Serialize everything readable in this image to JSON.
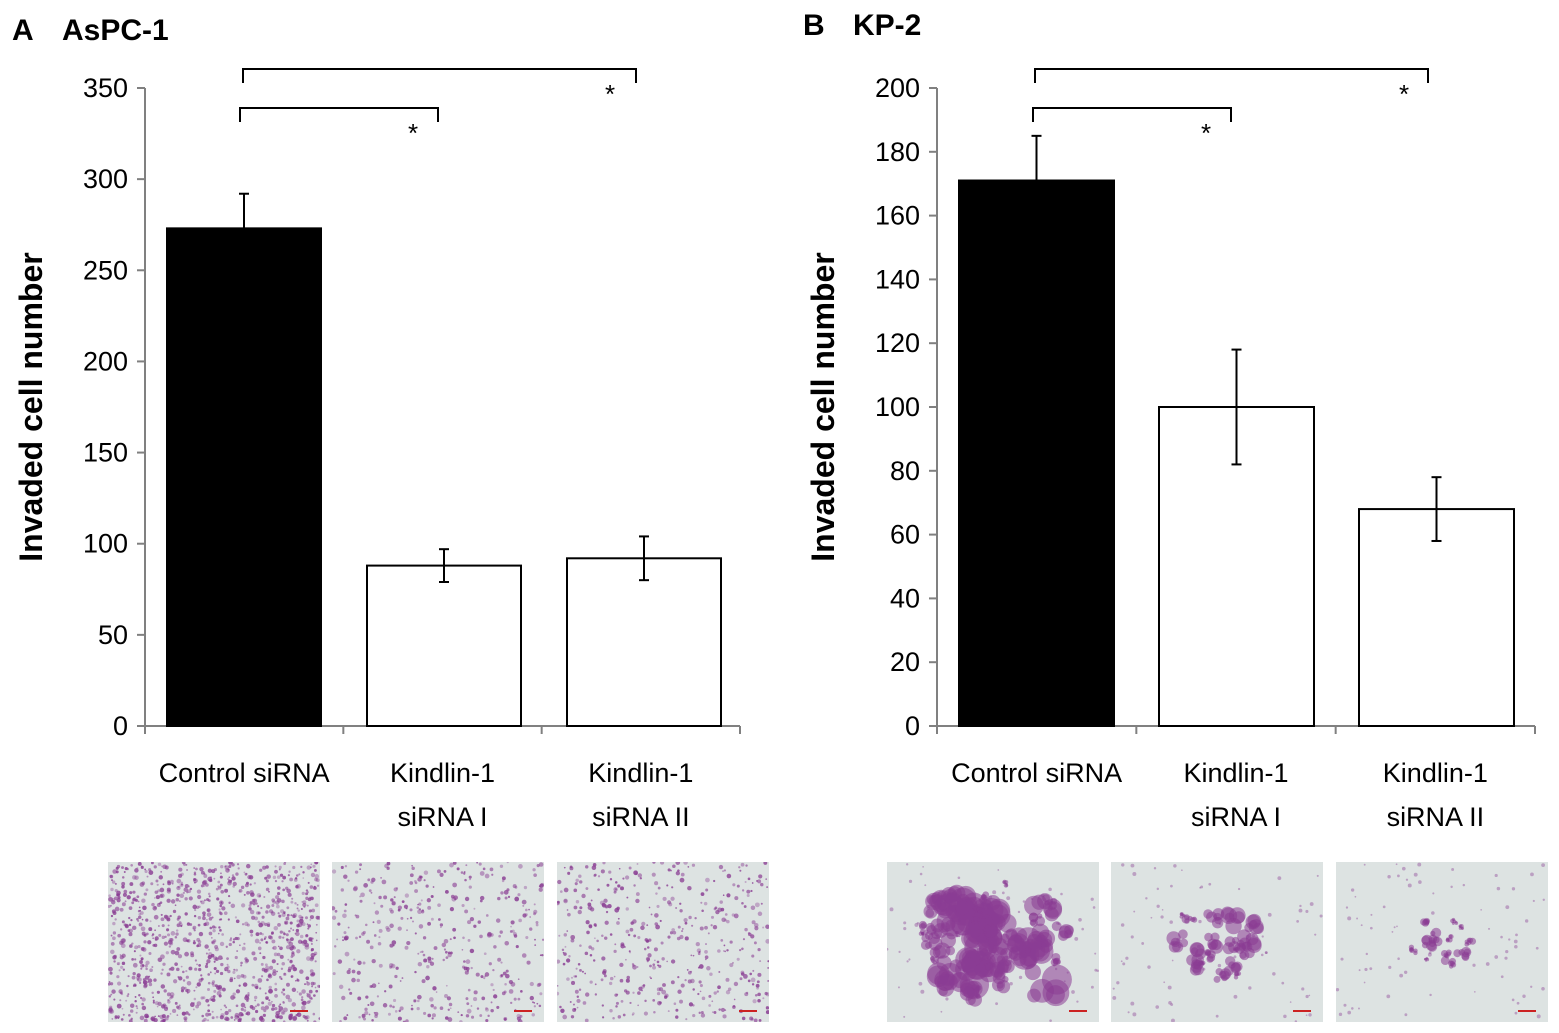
{
  "chart_data": [
    {
      "type": "bar",
      "panel_letter": "A",
      "title": "AsPC-1",
      "ylabel": "Invaded cell number",
      "xlabel": "",
      "ylim": [
        0,
        350
      ],
      "y_ticks": [
        0,
        50,
        100,
        150,
        200,
        250,
        300,
        350
      ],
      "grid": false,
      "categories": [
        {
          "lines": [
            "Control siRNA"
          ]
        },
        {
          "lines": [
            "Kindlin-1",
            "siRNA I"
          ]
        },
        {
          "lines": [
            "Kindlin-1",
            "siRNA II"
          ]
        }
      ],
      "values": [
        273,
        88,
        92
      ],
      "errors": [
        19,
        9,
        12
      ],
      "bar_colors": [
        "#000000",
        "#ffffff",
        "#ffffff"
      ],
      "significance": [
        {
          "from": 0,
          "to": 1,
          "label": "*"
        },
        {
          "from": 0,
          "to": 2,
          "label": "*"
        }
      ],
      "micrographs": [
        "Control siRNA",
        "Kindlin-1 siRNA I",
        "Kindlin-1 siRNA II"
      ]
    },
    {
      "type": "bar",
      "panel_letter": "B",
      "title": "KP-2",
      "ylabel": "Invaded cell number",
      "xlabel": "",
      "ylim": [
        0,
        200
      ],
      "y_ticks": [
        0,
        20,
        40,
        60,
        80,
        100,
        120,
        140,
        160,
        180,
        200
      ],
      "grid": false,
      "categories": [
        {
          "lines": [
            "Control siRNA"
          ]
        },
        {
          "lines": [
            "Kindlin-1",
            "siRNA I"
          ]
        },
        {
          "lines": [
            "Kindlin-1",
            "siRNA II"
          ]
        }
      ],
      "values": [
        171,
        100,
        68
      ],
      "errors": [
        14,
        18,
        10
      ],
      "bar_colors": [
        "#000000",
        "#ffffff",
        "#ffffff"
      ],
      "significance": [
        {
          "from": 0,
          "to": 1,
          "label": "*"
        },
        {
          "from": 0,
          "to": 2,
          "label": "*"
        }
      ],
      "micrographs": [
        "Control siRNA",
        "Kindlin-1 siRNA I",
        "Kindlin-1 siRNA II"
      ]
    }
  ],
  "colors": {
    "axis": "#808080",
    "micrograph_background": "#dde3e2",
    "stain": "#8a3d93",
    "scale_bar": "#cc2222"
  }
}
